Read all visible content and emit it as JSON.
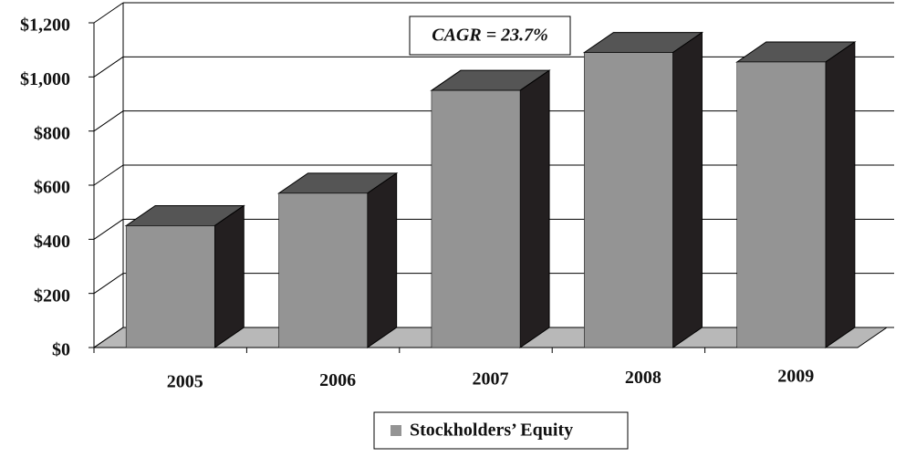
{
  "chart_data": {
    "type": "bar3d",
    "annotation": "CAGR = 23.7%",
    "categories": [
      "2005",
      "2006",
      "2007",
      "2008",
      "2009"
    ],
    "series": [
      {
        "name": "Stockholders’ Equity",
        "color": "#949494",
        "values": [
          450,
          570,
          950,
          1090,
          1055
        ]
      }
    ],
    "ylim": [
      0,
      1200
    ],
    "yticks": [
      {
        "value": 0,
        "label": "$0"
      },
      {
        "value": 200,
        "label": "$200"
      },
      {
        "value": 400,
        "label": "$400"
      },
      {
        "value": 600,
        "label": "$600"
      },
      {
        "value": 800,
        "label": "$800"
      },
      {
        "value": 1000,
        "label": "$1,000"
      },
      {
        "value": 1200,
        "label": "$1,200"
      }
    ],
    "grid": true
  }
}
